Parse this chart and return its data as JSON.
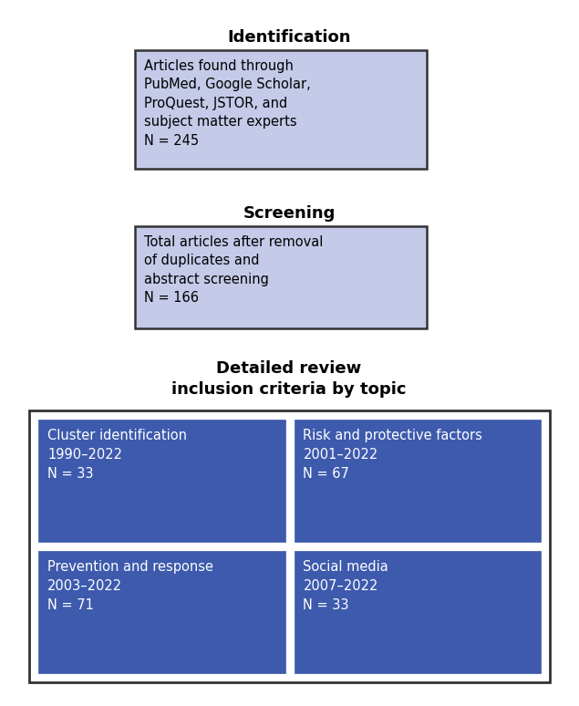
{
  "title1": "Identification",
  "box1_text": "Articles found through\nPubMed, Google Scholar,\nProQuest, JSTOR, and\nsubject matter experts\nN = 245",
  "title2": "Screening",
  "box2_text": "Total articles after removal\nof duplicates and\nabstract screening\nN = 166",
  "title3_line1": "Detailed review",
  "title3_line2": "inclusion criteria by topic",
  "sub_boxes": [
    {
      "text": "Cluster identification\n1990–2022\nN = 33"
    },
    {
      "text": "Risk and protective factors\n2001–2022\nN = 67"
    },
    {
      "text": "Prevention and response\n2003–2022\nN = 71"
    },
    {
      "text": "Social media\n2007–2022\nN = 33"
    }
  ],
  "light_blue_fill": "#c5cae9",
  "light_blue_border": "#333333",
  "dark_blue_fill": "#3d5aad",
  "dark_blue_text": "#ffffff",
  "outer_box_border": "#333333",
  "background": "#ffffff",
  "title_fontsize": 13,
  "body_fontsize": 10.5,
  "sub_fontsize": 10.5
}
